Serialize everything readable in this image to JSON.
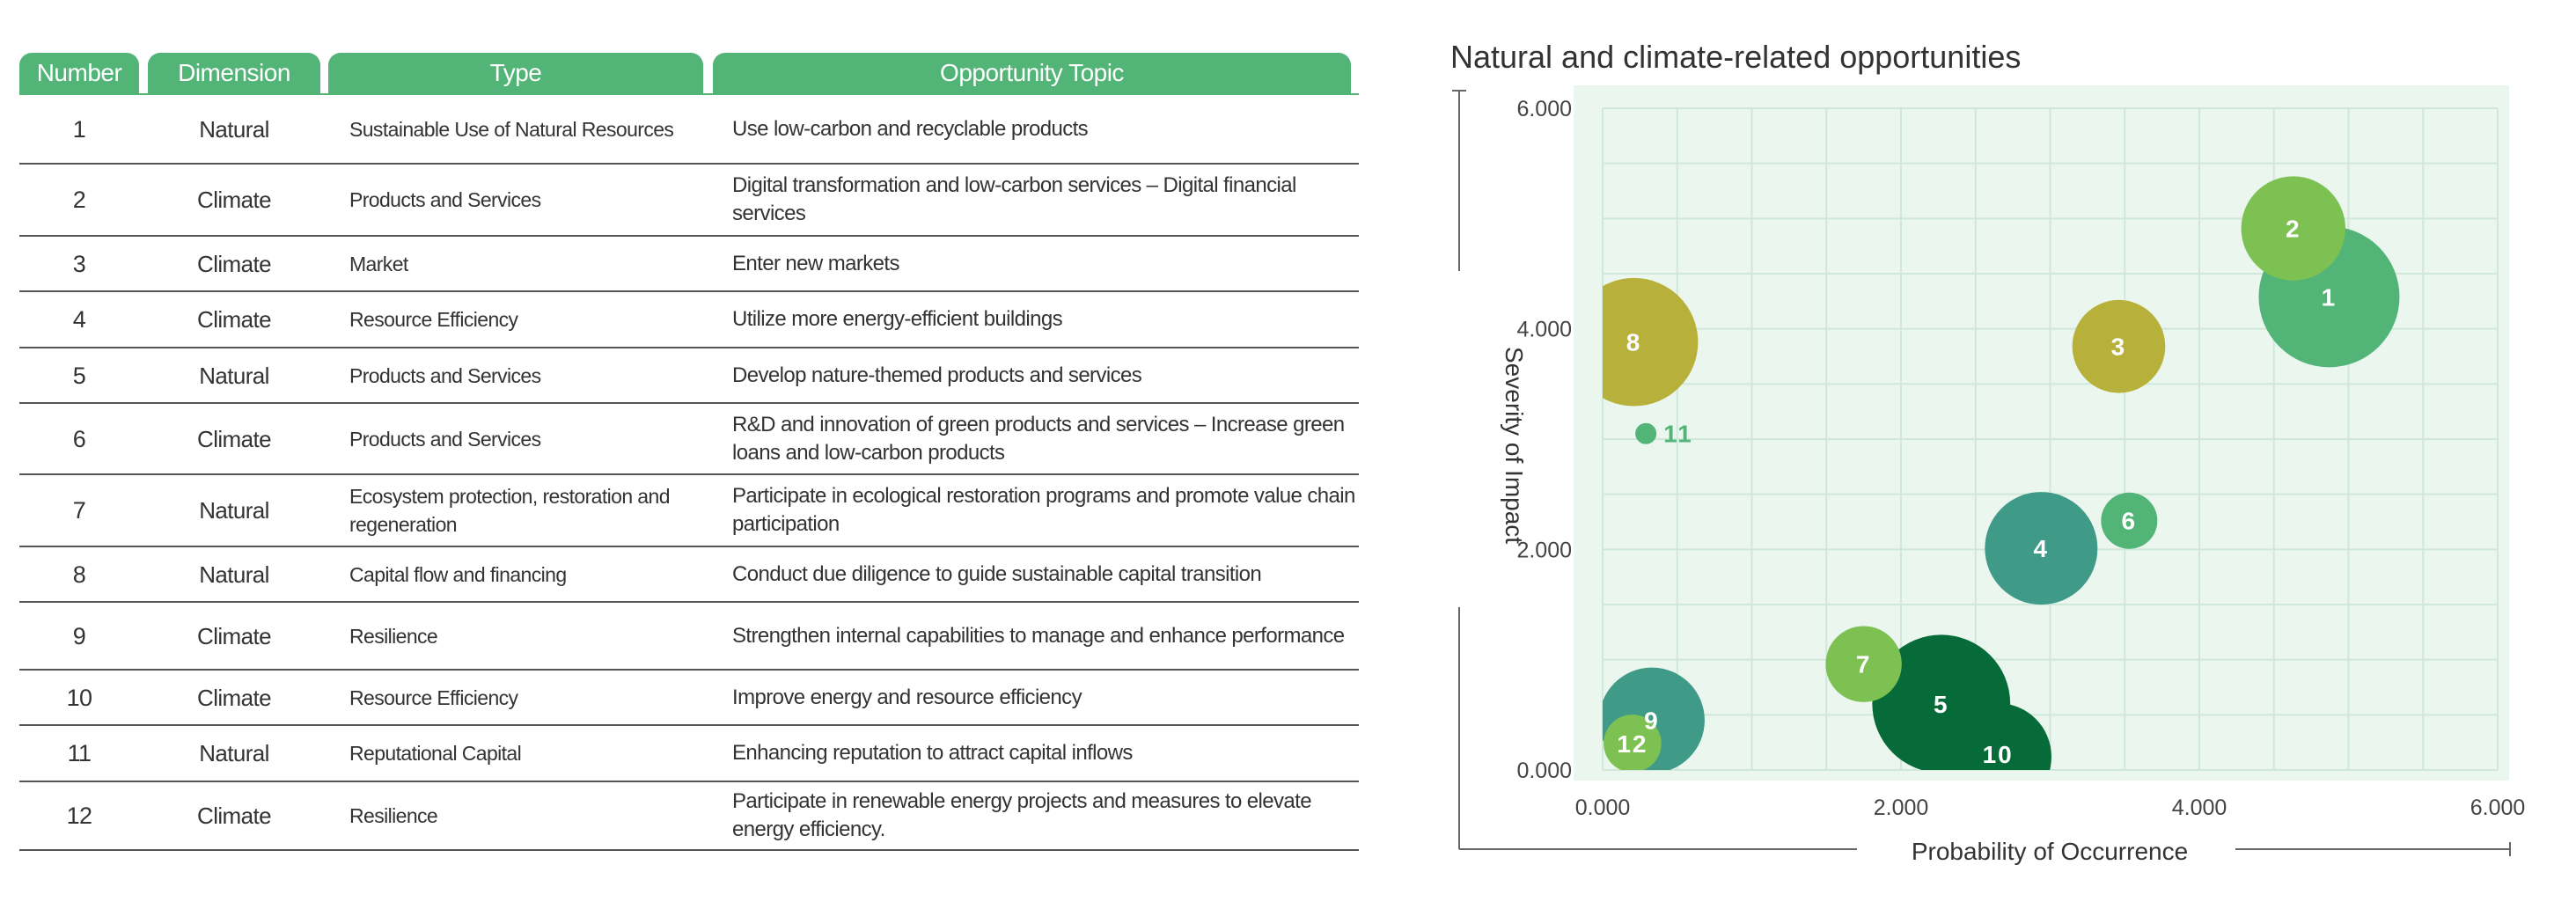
{
  "table": {
    "headers": [
      "Number",
      "Dimension",
      "Type",
      "Opportunity Topic"
    ],
    "header_color": "#52b477",
    "rows": [
      {
        "number": "1",
        "dimension": "Natural",
        "type": "Sustainable Use of Natural Resources",
        "topic": "Use low-carbon and recyclable products"
      },
      {
        "number": "2",
        "dimension": "Climate",
        "type": "Products and Services",
        "topic": "Digital transformation and low-carbon services – Digital financial services"
      },
      {
        "number": "3",
        "dimension": "Climate",
        "type": "Market",
        "topic": "Enter new markets"
      },
      {
        "number": "4",
        "dimension": "Climate",
        "type": "Resource Efficiency",
        "topic": "Utilize more energy-efficient buildings"
      },
      {
        "number": "5",
        "dimension": "Natural",
        "type": "Products and Services",
        "topic": "Develop nature-themed products and services"
      },
      {
        "number": "6",
        "dimension": "Climate",
        "type": "Products and Services",
        "topic": "R&D and innovation of green products and services – Increase green loans and low-carbon products"
      },
      {
        "number": "7",
        "dimension": "Natural",
        "type": "Ecosystem protection, restoration and regeneration",
        "topic": "Participate in ecological restoration programs and promote value chain participation"
      },
      {
        "number": "8",
        "dimension": "Natural",
        "type": "Capital flow and financing",
        "topic": "Conduct due diligence to guide sustainable capital transition"
      },
      {
        "number": "9",
        "dimension": "Climate",
        "type": "Resilience",
        "topic": "Strengthen internal capabilities to manage and enhance performance"
      },
      {
        "number": "10",
        "dimension": "Climate",
        "type": "Resource Efficiency",
        "topic": "Improve energy and resource efficiency"
      },
      {
        "number": "11",
        "dimension": "Natural",
        "type": "Reputational Capital",
        "topic": "Enhancing reputation to attract capital inflows"
      },
      {
        "number": "12",
        "dimension": "Climate",
        "type": "Resilience",
        "topic": "Participate in renewable energy projects and measures to elevate energy efficiency."
      }
    ]
  },
  "chart_data": {
    "type": "scatter",
    "title": "Natural and climate-related opportunities",
    "xlabel": "Probability of Occurrence",
    "ylabel": "Severity of Impact",
    "xlim": [
      0,
      6
    ],
    "ylim": [
      0,
      6
    ],
    "xticks": [
      "0.000",
      "2.000",
      "4.000",
      "6.000"
    ],
    "yticks": [
      "0.000",
      "2.000",
      "4.000",
      "6.000"
    ],
    "grid": true,
    "background": "#ebf6ef",
    "grid_color": "#cfe8d9",
    "points": [
      {
        "label": "1",
        "x": 4.87,
        "y": 4.29,
        "size": 10.0,
        "color": "#52b477"
      },
      {
        "label": "2",
        "x": 4.63,
        "y": 4.91,
        "size": 7.4,
        "color": "#7cc152"
      },
      {
        "label": "3",
        "x": 3.46,
        "y": 3.84,
        "size": 6.6,
        "color": "#b7b03a"
      },
      {
        "label": "4",
        "x": 2.94,
        "y": 2.01,
        "size": 8.0,
        "color": "#3f9a88"
      },
      {
        "label": "5",
        "x": 2.27,
        "y": 0.6,
        "size": 9.8,
        "color": "#066b38"
      },
      {
        "label": "6",
        "x": 3.53,
        "y": 2.26,
        "size": 4.0,
        "color": "#52b477"
      },
      {
        "label": "7",
        "x": 1.75,
        "y": 0.96,
        "size": 5.4,
        "color": "#7cc152"
      },
      {
        "label": "8",
        "x": 0.21,
        "y": 3.88,
        "size": 9.1,
        "color": "#b7b03a"
      },
      {
        "label": "9",
        "x": 0.33,
        "y": 0.45,
        "size": 7.5,
        "color": "#3f9a88"
      },
      {
        "label": "10",
        "x": 2.65,
        "y": 0.12,
        "size": 7.6,
        "color": "#066b38"
      },
      {
        "label": "11",
        "x": 0.29,
        "y": 3.05,
        "size": 1.5,
        "color": "#52b477"
      },
      {
        "label": "12",
        "x": 0.2,
        "y": 0.24,
        "size": 4.1,
        "color": "#7cc152"
      }
    ]
  }
}
